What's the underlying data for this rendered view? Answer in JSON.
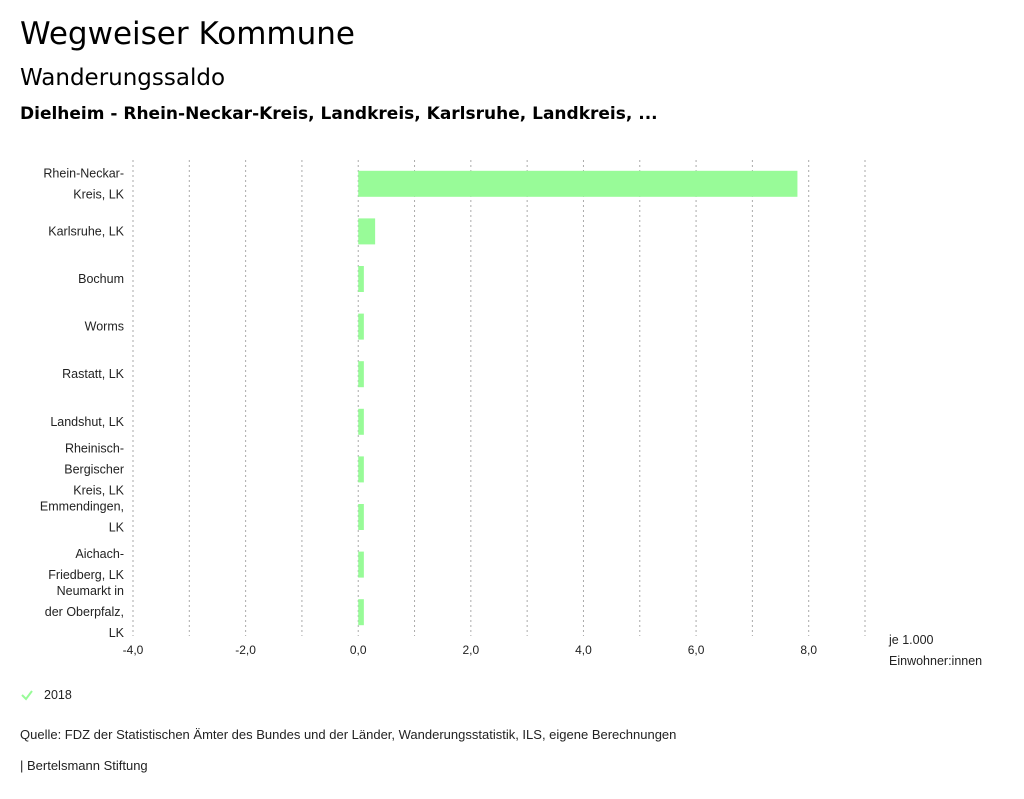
{
  "header": {
    "title": "Wegweiser Kommune",
    "subtitle": "Wanderungssaldo",
    "region": "Dielheim - Rhein-Neckar-Kreis, Landkreis, Karlsruhe, Landkreis, ..."
  },
  "colors": {
    "bar": "#98fb98",
    "grid": "#aaaaaa",
    "legend_check": "#98fb98"
  },
  "chart_data": {
    "type": "bar",
    "orientation": "horizontal",
    "categories": [
      [
        "Rhein-Neckar-",
        "Kreis, LK"
      ],
      [
        "Karlsruhe, LK"
      ],
      [
        "Bochum"
      ],
      [
        "Worms"
      ],
      [
        "Rastatt, LK"
      ],
      [
        "Landshut, LK"
      ],
      [
        "Rheinisch-",
        "Bergischer",
        "Kreis, LK"
      ],
      [
        "Emmendingen,",
        "LK"
      ],
      [
        "Aichach-",
        "Friedberg, LK"
      ],
      [
        "Neumarkt in",
        "der Oberpfalz,",
        "LK"
      ]
    ],
    "series": [
      {
        "name": "2018",
        "values": [
          7.8,
          0.3,
          0.1,
          0.1,
          0.1,
          0.1,
          0.1,
          0.1,
          0.1,
          0.1
        ]
      }
    ],
    "xlim": [
      -4.0,
      9.0
    ],
    "xticks": [
      -4.0,
      -2.0,
      0.0,
      2.0,
      4.0,
      6.0,
      8.0
    ],
    "xtick_labels": [
      "-4,0",
      "-2,0",
      "0,0",
      "2,0",
      "4,0",
      "6,0",
      "8,0"
    ],
    "gridlines": [
      -4,
      -3,
      -2,
      -1,
      0,
      1,
      2,
      3,
      4,
      5,
      6,
      7,
      8,
      9
    ],
    "unit_label": [
      "je 1.000",
      "Einwohner:innen"
    ],
    "legend": "2018"
  },
  "source": "Quelle: FDZ der Statistischen Ämter des Bundes und der Länder, Wanderungsstatistik, ILS, eigene Berechnungen",
  "footer": "| Bertelsmann Stiftung"
}
